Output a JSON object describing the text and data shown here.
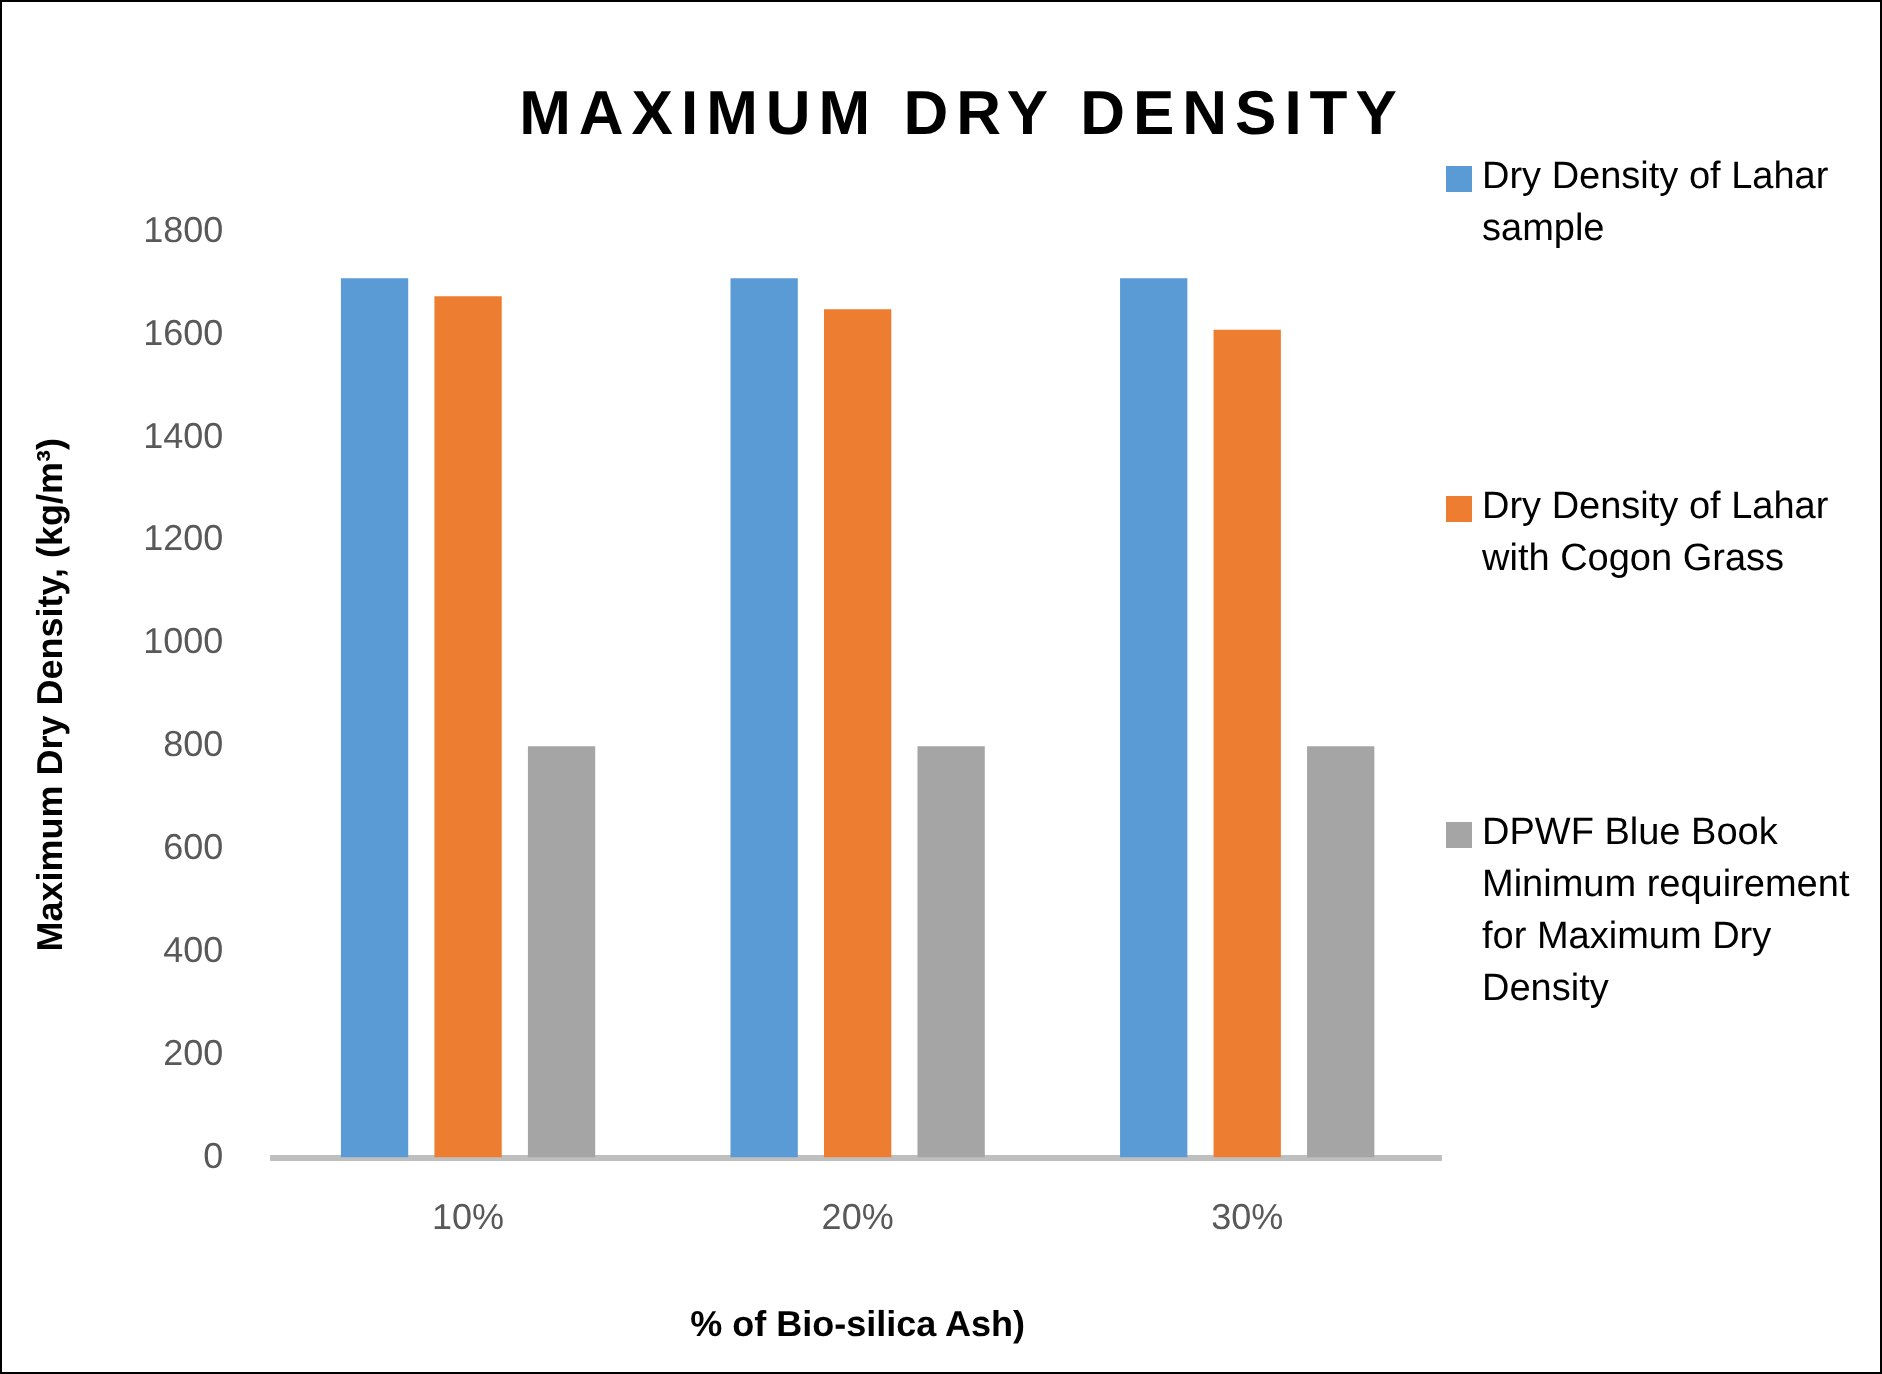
{
  "chart_data": {
    "type": "bar",
    "title": "MAXIMUM DRY DENSITY",
    "xlabel": "% of Bio-silica Ash)",
    "ylabel": "Maximum Dry Density, (kg/m³)",
    "categories": [
      "10%",
      "20%",
      "30%"
    ],
    "series": [
      {
        "name": "Dry Density of Lahar sample",
        "color": "#5b9bd5",
        "values": [
          1710,
          1710,
          1710
        ]
      },
      {
        "name": "Dry Density of Lahar with Cogon Grass",
        "color": "#ed7d31",
        "values": [
          1675,
          1650,
          1610
        ]
      },
      {
        "name": "DPWF Blue Book Minimum requirement for Maximum Dry Density",
        "color": "#a5a5a5",
        "values": [
          800,
          800,
          800
        ]
      }
    ],
    "ylim": [
      0,
      1800
    ],
    "yticks": [
      0,
      200,
      400,
      600,
      800,
      1000,
      1200,
      1400,
      1600,
      1800
    ],
    "grid": false,
    "legend": "right"
  }
}
